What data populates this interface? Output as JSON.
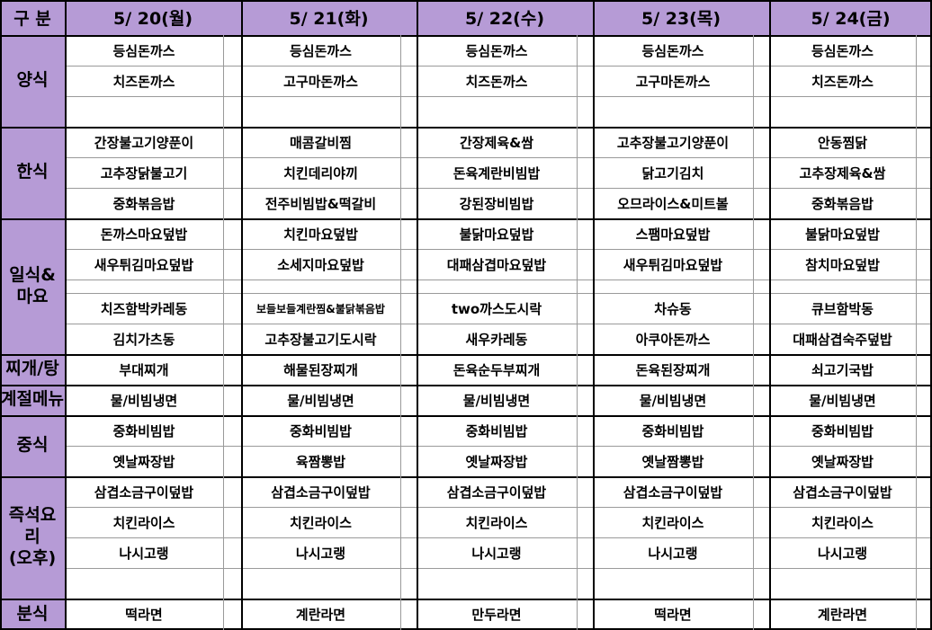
{
  "header": {
    "label": "구  분",
    "days": [
      "5/ 20(월)",
      "5/ 21(화)",
      "5/ 22(수)",
      "5/ 23(목)",
      "5/ 24(금)"
    ]
  },
  "categories": [
    {
      "id": "western",
      "label": "양식",
      "rows": [
        [
          "등심돈까스",
          "등심돈까스",
          "등심돈까스",
          "등심돈까스",
          "등심돈까스"
        ],
        [
          "치즈돈까스",
          "고구마돈까스",
          "치즈돈까스",
          "고구마돈까스",
          "치즈돈까스"
        ],
        [
          "",
          "",
          "",
          "",
          ""
        ]
      ]
    },
    {
      "id": "korean",
      "label": "한식",
      "rows": [
        [
          "간장불고기양푼이",
          "매콤갈비찜",
          "간장제육&쌈",
          "고추장불고기양푼이",
          "안동찜닭"
        ],
        [
          "고추장닭불고기",
          "치킨데리야끼",
          "돈육계란비빔밥",
          "닭고기김치",
          "고추장제육&쌈"
        ],
        [
          "중화볶음밥",
          "전주비빔밥&떡갈비",
          "강된장비빔밥",
          "오므라이스&미트볼",
          "중화볶음밥"
        ]
      ]
    },
    {
      "id": "japanese",
      "label": "일식&\n마요",
      "rows": [
        [
          "돈까스마요덮밥",
          "치킨마요덮밥",
          "불닭마요덮밥",
          "스팸마요덮밥",
          "불닭마요덮밥"
        ],
        [
          "새우튀김마요덮밥",
          "소세지마요덮밥",
          "대패삼겹마요덮밥",
          "새우튀김마요덮밥",
          "참치마요덮밥"
        ],
        [
          "치즈함박카레동",
          "보들보들계란찜&불닭볶음밥",
          "two까스도시락",
          "차슈동",
          "큐브함박동"
        ],
        [
          "김치가츠동",
          "고추장불고기도시락",
          "새우카레동",
          "아쿠아돈까스",
          "대패삼겹숙주덮밥"
        ]
      ]
    },
    {
      "id": "stew",
      "label": "찌개/탕",
      "rows": [
        [
          "부대찌개",
          "해물된장찌개",
          "돈육순두부찌개",
          "돈육된장찌개",
          "쇠고기국밥"
        ]
      ]
    },
    {
      "id": "seasonal",
      "label": "계절메뉴",
      "rows": [
        [
          "물/비빔냉면",
          "물/비빔냉면",
          "물/비빔냉면",
          "물/비빔냉면",
          "물/비빔냉면"
        ]
      ]
    },
    {
      "id": "chinese",
      "label": "중식",
      "rows": [
        [
          "중화비빔밥",
          "중화비빔밥",
          "중화비빔밥",
          "중화비빔밥",
          "중화비빔밥"
        ],
        [
          "옛날짜장밥",
          "육짬뽕밥",
          "옛날짜장밥",
          "옛날짬뽕밥",
          "옛날짜장밥"
        ]
      ]
    },
    {
      "id": "instant",
      "label": "즉석요\n리\n(오후)",
      "rows": [
        [
          "삼겹소금구이덮밥",
          "삼겹소금구이덮밥",
          "삼겹소금구이덮밥",
          "삼겹소금구이덮밥",
          "삼겹소금구이덮밥"
        ],
        [
          "치킨라이스",
          "치킨라이스",
          "치킨라이스",
          "치킨라이스",
          "치킨라이스"
        ],
        [
          "나시고랭",
          "나시고랭",
          "나시고랭",
          "나시고랭",
          "나시고랭"
        ],
        [
          "",
          "",
          "",
          "",
          ""
        ]
      ]
    },
    {
      "id": "snack",
      "label": "분식",
      "rows": [
        [
          "떡라면",
          "계란라면",
          "만두라면",
          "떡라면",
          "계란라면"
        ]
      ]
    }
  ]
}
